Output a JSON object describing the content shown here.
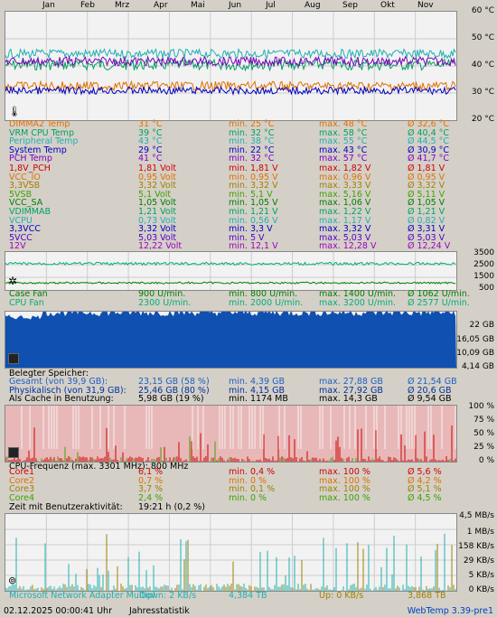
{
  "months": [
    "Jan",
    "Feb",
    "Mrz",
    "Apr",
    "Mai",
    "Jun",
    "Jul",
    "Aug",
    "Sep",
    "Okt",
    "Nov"
  ],
  "temp_axis": [
    "60 °C",
    "50 °C",
    "40 °C",
    "30 °C",
    "20 °C"
  ],
  "temps": [
    {
      "name": "DIMMA2 Temp",
      "cur": "31 °C",
      "min": "min. 25 °C",
      "max": "max. 48 °C",
      "avg": "Ø 32,6 °C",
      "color": "#e07000"
    },
    {
      "name": "VRM CPU Temp",
      "cur": "39 °C",
      "min": "min. 32 °C",
      "max": "max. 58 °C",
      "avg": "Ø 40,4 °C",
      "color": "#00a060"
    },
    {
      "name": "Peripheral Temp",
      "cur": "43 °C",
      "min": "min. 38 °C",
      "max": "max. 55 °C",
      "avg": "Ø 44,5 °C",
      "color": "#20b0b0"
    },
    {
      "name": "System Temp",
      "cur": "29 °C",
      "min": "min. 22 °C",
      "max": "max. 43 °C",
      "avg": "Ø 30,9 °C",
      "color": "#0000c0"
    },
    {
      "name": "PCH Temp",
      "cur": "41 °C",
      "min": "min. 32 °C",
      "max": "max. 57 °C",
      "avg": "Ø 41,7 °C",
      "color": "#8000c0"
    }
  ],
  "volts": [
    {
      "name": "1,8V_PCH",
      "cur": "1,81 Volt",
      "min": "min. 1,81 V",
      "max": "max. 1,82 V",
      "avg": "Ø 1,81 V",
      "color": "#d00000"
    },
    {
      "name": "VCC_IO",
      "cur": "0,95 Volt",
      "min": "min. 0,95 V",
      "max": "max. 0,96 V",
      "avg": "Ø 0,95 V",
      "color": "#e07000"
    },
    {
      "name": "3,3VSB",
      "cur": "3,32 Volt",
      "min": "min. 3,32 V",
      "max": "max. 3,33 V",
      "avg": "Ø 3,32 V",
      "color": "#a08000"
    },
    {
      "name": "5VSB",
      "cur": "5,1 Volt",
      "min": "min. 5,1 V",
      "max": "max. 5,16 V",
      "avg": "Ø 5,11 V",
      "color": "#40a000"
    },
    {
      "name": "VCC_SA",
      "cur": "1,05 Volt",
      "min": "min. 1,05 V",
      "max": "max. 1,06 V",
      "avg": "Ø 1,05 V",
      "color": "#008000"
    },
    {
      "name": "VDIMMAB",
      "cur": "1,21 Volt",
      "min": "min. 1,21 V",
      "max": "max. 1,22 V",
      "avg": "Ø 1,21 V",
      "color": "#00a060"
    },
    {
      "name": "VCPU",
      "cur": "0,73 Volt",
      "min": "min. 0,56 V",
      "max": "max. 1,17 V",
      "avg": "Ø 0,82 V",
      "color": "#20b0b0"
    },
    {
      "name": "3,3VCC",
      "cur": "3,32 Volt",
      "min": "min. 3,3 V",
      "max": "max. 3,32 V",
      "avg": "Ø 3,31 V",
      "color": "#0000c0"
    },
    {
      "name": "5VCC",
      "cur": "5,03 Volt",
      "min": "min. 5 V",
      "max": "max. 5,03 V",
      "avg": "Ø 5,03 V",
      "color": "#5000c0"
    },
    {
      "name": "12V",
      "cur": "12,22 Volt",
      "min": "min. 12,1 V",
      "max": "max. 12,28 V",
      "avg": "Ø 12,24 V",
      "color": "#a000c0"
    }
  ],
  "fan_axis": [
    "3500",
    "2500",
    "1500",
    "500"
  ],
  "fans": [
    {
      "name": "Case Fan",
      "cur": "900 U/min.",
      "min": "min. 800 U/min.",
      "max": "max. 1400 U/min.",
      "avg": "Ø 1062 U/min.",
      "color": "#008000"
    },
    {
      "name": "CPU Fan",
      "cur": "2300 U/min.",
      "min": "min. 2000 U/min.",
      "max": "max. 3200 U/min.",
      "avg": "Ø 2577 U/min.",
      "color": "#00b070"
    }
  ],
  "mem_axis": [
    "22 GB",
    "16,05 GB",
    "10,09 GB",
    "4,14 GB"
  ],
  "mem_title": "Belegter Speicher:",
  "mem": [
    {
      "name": "Gesamt (von 39,9 GB):",
      "cur": "23,15 GB (58 %)",
      "min": "min. 4,39 GB",
      "max": "max. 27,88 GB",
      "avg": "Ø 21,54 GB",
      "color": "#2060c0"
    },
    {
      "name": "Physikalisch (von 31,9 GB):",
      "cur": "25,46 GB (80 %)",
      "min": "min. 4,15 GB",
      "max": "max. 27,92 GB",
      "avg": "Ø 20,6 GB",
      "color": "#0030a0"
    },
    {
      "name": "Als Cache in Benutzung:",
      "cur": "5,98 GB (19 %)",
      "min": "min. 1174 MB",
      "max": "max. 14,3 GB",
      "avg": "Ø 9,54 GB",
      "color": "#000000"
    }
  ],
  "cpu_axis": [
    "100 %",
    "75 %",
    "50 %",
    "25 %",
    "0 %"
  ],
  "cpu_title": "CPU-Frequenz (max. 3301 MHz): 800 MHz",
  "cores": [
    {
      "name": "Core1",
      "cur": "6,1 %",
      "min": "min. 0,4 %",
      "max": "max. 100 %",
      "avg": "Ø 5,6 %",
      "color": "#d00000"
    },
    {
      "name": "Core2",
      "cur": "0,7 %",
      "min": "min. 0 %",
      "max": "max. 100 %",
      "avg": "Ø 4,2 %",
      "color": "#e07000"
    },
    {
      "name": "Core3",
      "cur": "3,7 %",
      "min": "min. 0,1 %",
      "max": "max. 100 %",
      "avg": "Ø 5,1 %",
      "color": "#a08000"
    },
    {
      "name": "Core4",
      "cur": "2,4 %",
      "min": "min. 0 %",
      "max": "max. 100 %",
      "avg": "Ø 4,5 %",
      "color": "#40a000"
    }
  ],
  "user_activity_label": "Zeit mit Benutzeraktivität:",
  "user_activity_value": "19:21 h (0,2 %)",
  "net_axis": [
    "4,5 MB/s",
    "1 MB/s",
    "158 KB/s",
    "29 KB/s",
    "5 KB/s",
    "0 KB/s"
  ],
  "net": {
    "adapter": "Microsoft Network Adapter Multipl",
    "down": "Down: 2 KB/s",
    "down_total": "4,384 TB",
    "up": "Up: 0 KB/s",
    "up_total": "3,868 TB"
  },
  "footer": {
    "datetime": "02.12.2025 00:00:41 Uhr",
    "mode": "Jahresstatistik",
    "version": "WebTemp 3.39-pre1"
  },
  "colors": {
    "background": "#d4d0c8",
    "panel": "#f2f2f2",
    "memory_fill": "#1050b0",
    "cpu_fill": "#e8b8b8"
  }
}
